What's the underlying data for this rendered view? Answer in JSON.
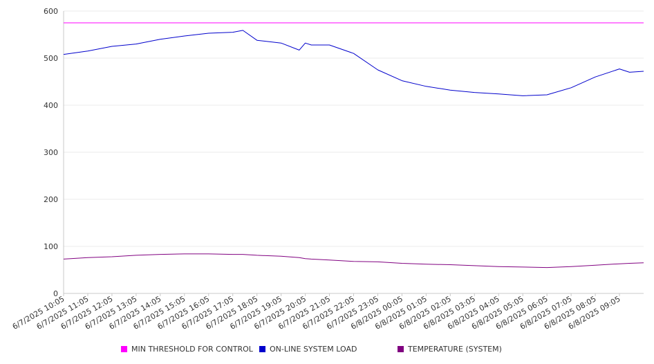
{
  "chart_data": {
    "type": "line",
    "title": "",
    "xlabel": "",
    "ylabel": "",
    "ylim": [
      0,
      600
    ],
    "yticks": [
      0,
      100,
      200,
      300,
      400,
      500,
      600
    ],
    "grid": "horizontal",
    "legend_placement": "bottom",
    "x_tick_labels": [
      "6/7/2025 10:05",
      "6/7/2025 11:05",
      "6/7/2025 12:05",
      "6/7/2025 13:05",
      "6/7/2025 14:05",
      "6/7/2025 15:05",
      "6/7/2025 16:05",
      "6/7/2025 17:05",
      "6/7/2025 18:05",
      "6/7/2025 19:05",
      "6/7/2025 20:05",
      "6/7/2025 21:05",
      "6/7/2025 22:05",
      "6/7/2025 23:05",
      "6/8/2025 00:05",
      "6/8/2025 01:05",
      "6/8/2025 02:05",
      "6/8/2025 03:05",
      "6/8/2025 04:05",
      "6/8/2025 05:05",
      "6/8/2025 06:05",
      "6/8/2025 07:05",
      "6/8/2025 08:05",
      "6/8/2025 09:05"
    ],
    "x": [
      "6/7/2025 10:05",
      "6/7/2025 11:05",
      "6/7/2025 12:05",
      "6/7/2025 13:05",
      "6/7/2025 14:05",
      "6/7/2025 15:05",
      "6/7/2025 16:05",
      "6/7/2025 17:05",
      "6/7/2025 17:30",
      "6/7/2025 18:05",
      "6/7/2025 19:05",
      "6/7/2025 19:50",
      "6/7/2025 20:05",
      "6/7/2025 20:20",
      "6/7/2025 21:05",
      "6/7/2025 22:05",
      "6/7/2025 23:05",
      "6/8/2025 00:05",
      "6/8/2025 01:05",
      "6/8/2025 02:05",
      "6/8/2025 03:05",
      "6/8/2025 04:05",
      "6/8/2025 05:05",
      "6/8/2025 06:05",
      "6/8/2025 07:05",
      "6/8/2025 08:05",
      "6/8/2025 09:05",
      "6/8/2025 09:30",
      "6/8/2025 10:05"
    ],
    "series": [
      {
        "name": "MIN THRESHOLD FOR CONTROL",
        "color": "#ff00ff",
        "values": [
          575,
          575,
          575,
          575,
          575,
          575,
          575,
          575,
          575,
          575,
          575,
          575,
          575,
          575,
          575,
          575,
          575,
          575,
          575,
          575,
          575,
          575,
          575,
          575,
          575,
          575,
          575,
          575,
          575
        ]
      },
      {
        "name": "ON-LINE SYSTEM LOAD",
        "color": "#0000cc",
        "values": [
          508,
          515,
          525,
          530,
          540,
          547,
          553,
          555,
          559,
          538,
          532,
          517,
          532,
          528,
          528,
          510,
          475,
          452,
          440,
          432,
          427,
          424,
          420,
          422,
          437,
          460,
          477,
          470,
          472
        ]
      },
      {
        "name": "TEMPERATURE (SYSTEM)",
        "color": "#800080",
        "values": [
          73,
          76,
          78,
          81,
          83,
          84,
          84,
          83,
          83,
          81,
          79,
          76,
          74,
          73,
          71,
          68,
          67,
          64,
          62,
          61,
          59,
          57,
          56,
          55,
          57,
          60,
          63,
          64,
          65
        ]
      }
    ]
  }
}
